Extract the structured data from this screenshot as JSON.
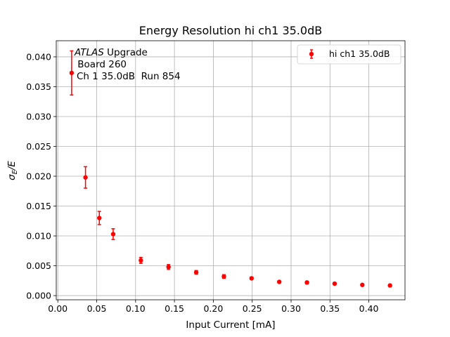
{
  "chart_data": {
    "type": "scatter",
    "title": "Energy Resolution hi ch1 35.0dB",
    "xlabel": "Input Current [mA]",
    "ylabel_main": "σ",
    "ylabel_sub": "E",
    "ylabel_tail": "/E",
    "xlim": [
      -0.002,
      0.4465
    ],
    "ylim": [
      -0.0007,
      0.0427
    ],
    "xticks": [
      0.0,
      0.05,
      0.1,
      0.15,
      0.2,
      0.25,
      0.3,
      0.35,
      0.4
    ],
    "xtick_labels": [
      "0.00",
      "0.05",
      "0.10",
      "0.15",
      "0.20",
      "0.25",
      "0.30",
      "0.35",
      "0.40"
    ],
    "yticks": [
      0.0,
      0.005,
      0.01,
      0.015,
      0.02,
      0.025,
      0.03,
      0.035,
      0.04
    ],
    "ytick_labels": [
      "0.000",
      "0.005",
      "0.010",
      "0.015",
      "0.020",
      "0.025",
      "0.030",
      "0.035",
      "0.040"
    ],
    "grid": true,
    "legend": {
      "placement": "top-right",
      "entries": [
        "hi ch1 35.0dB"
      ]
    },
    "annotation": {
      "line1_italic": "ATLAS",
      "line1_rest": " Upgrade",
      "line2": " Board 260",
      "line3": "Ch 1 35.0dB  Run 854"
    },
    "series": [
      {
        "name": "hi ch1 35.0dB",
        "color": "#ff0000",
        "points": [
          {
            "x": 0.0178,
            "y": 0.0373,
            "err": 0.0037
          },
          {
            "x": 0.0356,
            "y": 0.0198,
            "err": 0.0018
          },
          {
            "x": 0.0534,
            "y": 0.013,
            "err": 0.0011
          },
          {
            "x": 0.0712,
            "y": 0.0103,
            "err": 0.0009
          },
          {
            "x": 0.1068,
            "y": 0.0059,
            "err": 0.0005
          },
          {
            "x": 0.1424,
            "y": 0.0048,
            "err": 0.0004
          },
          {
            "x": 0.178,
            "y": 0.0039,
            "err": 0.0003
          },
          {
            "x": 0.2136,
            "y": 0.0032,
            "err": 0.0003
          },
          {
            "x": 0.2492,
            "y": 0.0029,
            "err": 0.0002
          },
          {
            "x": 0.2848,
            "y": 0.0023,
            "err": 0.0002
          },
          {
            "x": 0.3204,
            "y": 0.0022,
            "err": 0.0002
          },
          {
            "x": 0.356,
            "y": 0.002,
            "err": 0.0002
          },
          {
            "x": 0.3916,
            "y": 0.0018,
            "err": 0.0001
          },
          {
            "x": 0.4272,
            "y": 0.0017,
            "err": 0.0001
          }
        ]
      }
    ]
  }
}
